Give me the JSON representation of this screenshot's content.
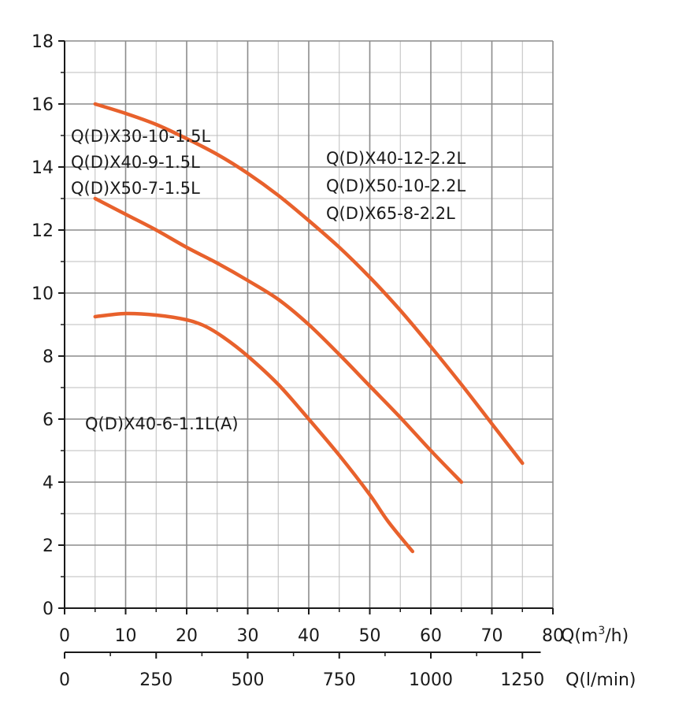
{
  "chart_data": {
    "type": "line",
    "title": "",
    "colors": {
      "curve": "#e8612c",
      "grid": "#8c8c8c",
      "text": "#1a1a1a"
    },
    "x_axis": {
      "label": "Q(m³/h)",
      "label_prefix": "Q(m",
      "label_sup": "3",
      "label_suffix": "/h)",
      "range": [
        0,
        80
      ],
      "ticks": [
        "0",
        "10",
        "20",
        "30",
        "40",
        "50",
        "60",
        "70",
        "80"
      ]
    },
    "secondary_x_axis": {
      "label": "Q(l/min)",
      "ticks": [
        {
          "value": 0,
          "label": "0"
        },
        {
          "value": 250,
          "label": "250"
        },
        {
          "value": 500,
          "label": "500"
        },
        {
          "value": 750,
          "label": "750"
        },
        {
          "value": 1000,
          "label": "1000"
        },
        {
          "value": 1250,
          "label": "1250"
        }
      ]
    },
    "y_axis": {
      "range": [
        0,
        18
      ],
      "ticks": [
        "0",
        "2",
        "4",
        "6",
        "8",
        "10",
        "12",
        "14",
        "16",
        "18"
      ]
    },
    "series": [
      {
        "name": "Q(D)X40-6-1.1L(A)",
        "labels": [
          "Q(D)X40-6-1.1L(A)"
        ],
        "points": [
          [
            5,
            9.25
          ],
          [
            10,
            9.35
          ],
          [
            15,
            9.3
          ],
          [
            20,
            9.15
          ],
          [
            23,
            8.95
          ],
          [
            26,
            8.6
          ],
          [
            30,
            8.0
          ],
          [
            35,
            7.1
          ],
          [
            40,
            6.0
          ],
          [
            45,
            4.85
          ],
          [
            50,
            3.6
          ],
          [
            53,
            2.75
          ],
          [
            57,
            1.8
          ]
        ]
      },
      {
        "name": "Q(D)X30-10-1.5L / Q(D)X40-9-1.5L / Q(D)X50-7-1.5L",
        "labels": [
          "Q(D)X30-10-1.5L",
          "Q(D)X40-9-1.5L",
          "Q(D)X50-7-1.5L"
        ],
        "points": [
          [
            5,
            13.0
          ],
          [
            10,
            12.5
          ],
          [
            15,
            12.0
          ],
          [
            20,
            11.45
          ],
          [
            25,
            10.95
          ],
          [
            30,
            10.4
          ],
          [
            35,
            9.8
          ],
          [
            40,
            9.0
          ],
          [
            45,
            8.05
          ],
          [
            50,
            7.05
          ],
          [
            55,
            6.05
          ],
          [
            60,
            5.0
          ],
          [
            65,
            4.0
          ]
        ]
      },
      {
        "name": "Q(D)X40-12-2.2L / Q(D)X50-10-2.2L / Q(D)X65-8-2.2L",
        "labels": [
          "Q(D)X40-12-2.2L",
          "Q(D)X50-10-2.2L",
          "Q(D)X65-8-2.2L"
        ],
        "points": [
          [
            5,
            16.0
          ],
          [
            10,
            15.7
          ],
          [
            15,
            15.35
          ],
          [
            20,
            14.9
          ],
          [
            25,
            14.4
          ],
          [
            30,
            13.8
          ],
          [
            35,
            13.1
          ],
          [
            40,
            12.3
          ],
          [
            45,
            11.45
          ],
          [
            50,
            10.5
          ],
          [
            55,
            9.45
          ],
          [
            60,
            8.3
          ],
          [
            65,
            7.1
          ],
          [
            70,
            5.85
          ],
          [
            75,
            4.6
          ]
        ]
      }
    ]
  }
}
